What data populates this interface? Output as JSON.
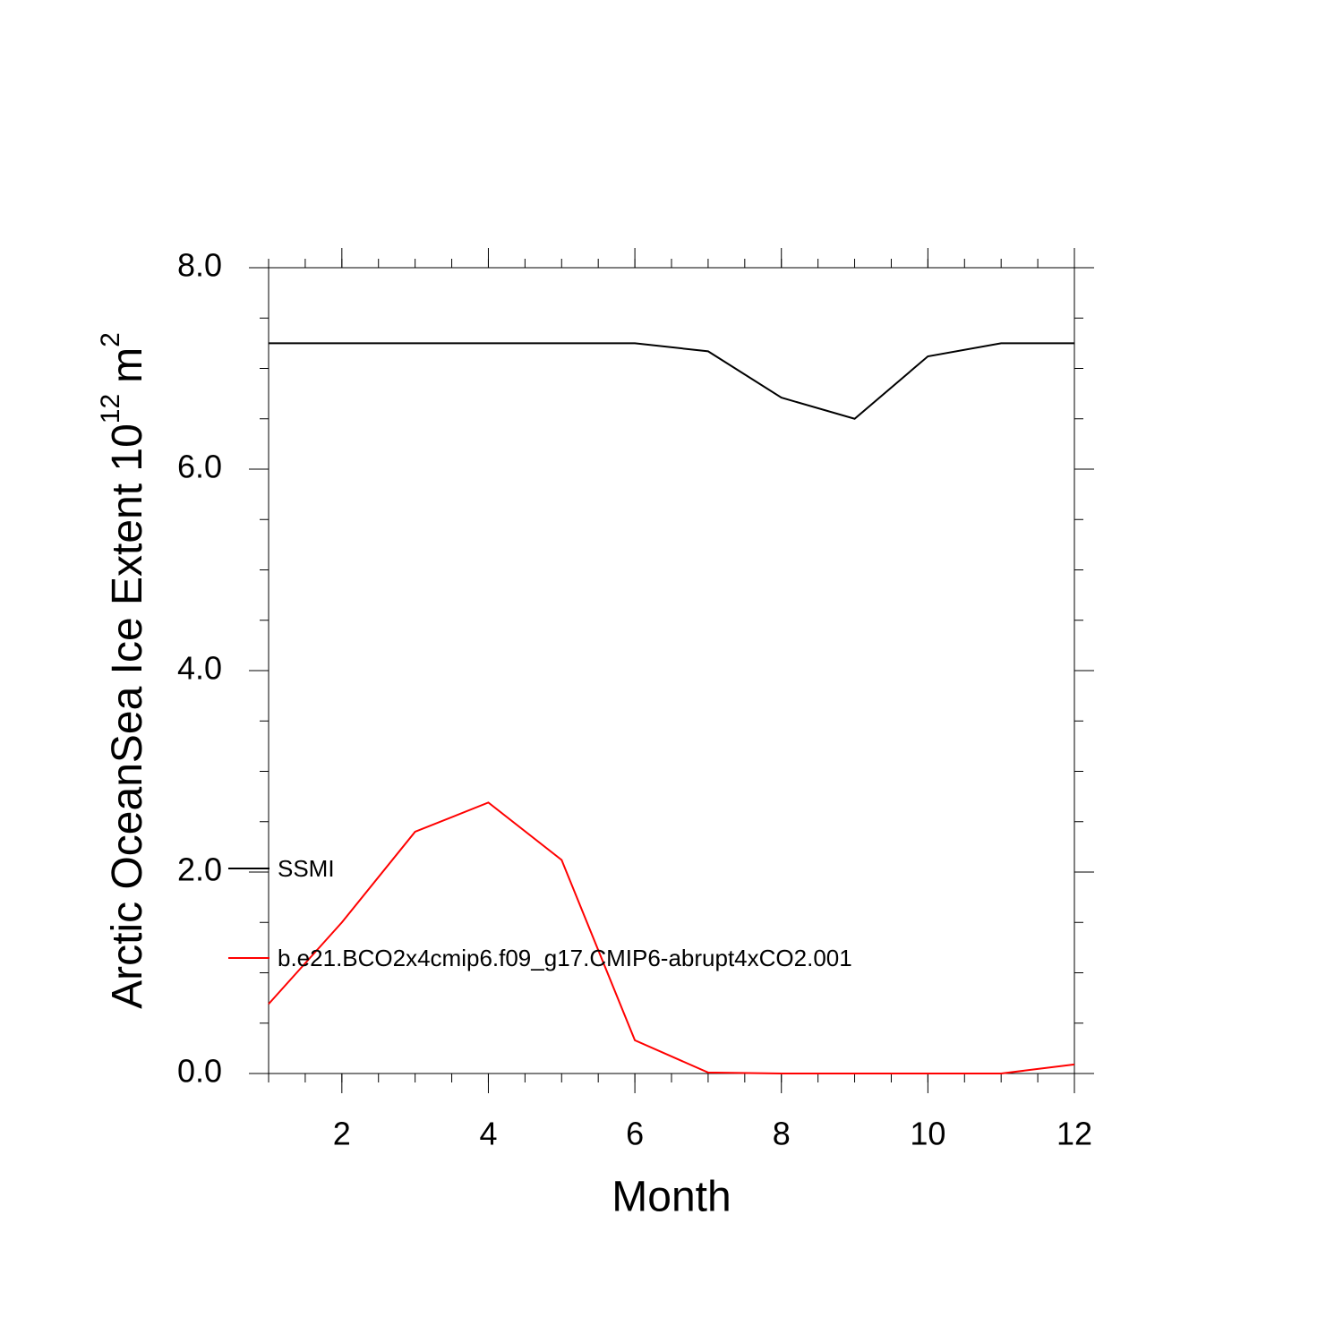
{
  "chart_data": {
    "type": "line",
    "xlabel": "Month",
    "ylabel_parts": [
      "Arctic OceanSea Ice Extent 10",
      "12",
      "m",
      "2"
    ],
    "x": [
      1,
      2,
      3,
      4,
      5,
      6,
      7,
      8,
      9,
      10,
      11,
      12
    ],
    "series": [
      {
        "name": "SSMI",
        "color": "#000000",
        "values": [
          7.25,
          7.25,
          7.25,
          7.25,
          7.25,
          7.25,
          7.17,
          6.71,
          6.5,
          7.12,
          7.25,
          7.25
        ]
      },
      {
        "name": "b.e21.BCO2x4cmip6.f09_g17.CMIP6-abrupt4xCO2.001",
        "color": "#ff0000",
        "values": [
          0.69,
          1.5,
          2.4,
          2.69,
          2.12,
          0.33,
          0.01,
          0.0,
          0.0,
          0.0,
          0.0,
          0.09
        ]
      }
    ],
    "xlim": [
      1,
      12
    ],
    "xticks": [
      2,
      4,
      6,
      8,
      10,
      12
    ],
    "ylim": [
      0,
      8
    ],
    "yticks": [
      {
        "value": 0,
        "label": "0.0"
      },
      {
        "value": 2,
        "label": "2.0"
      },
      {
        "value": 4,
        "label": "4.0"
      },
      {
        "value": 6,
        "label": "6.0"
      },
      {
        "value": 8,
        "label": "8.0"
      }
    ],
    "legend": "lower-left"
  }
}
